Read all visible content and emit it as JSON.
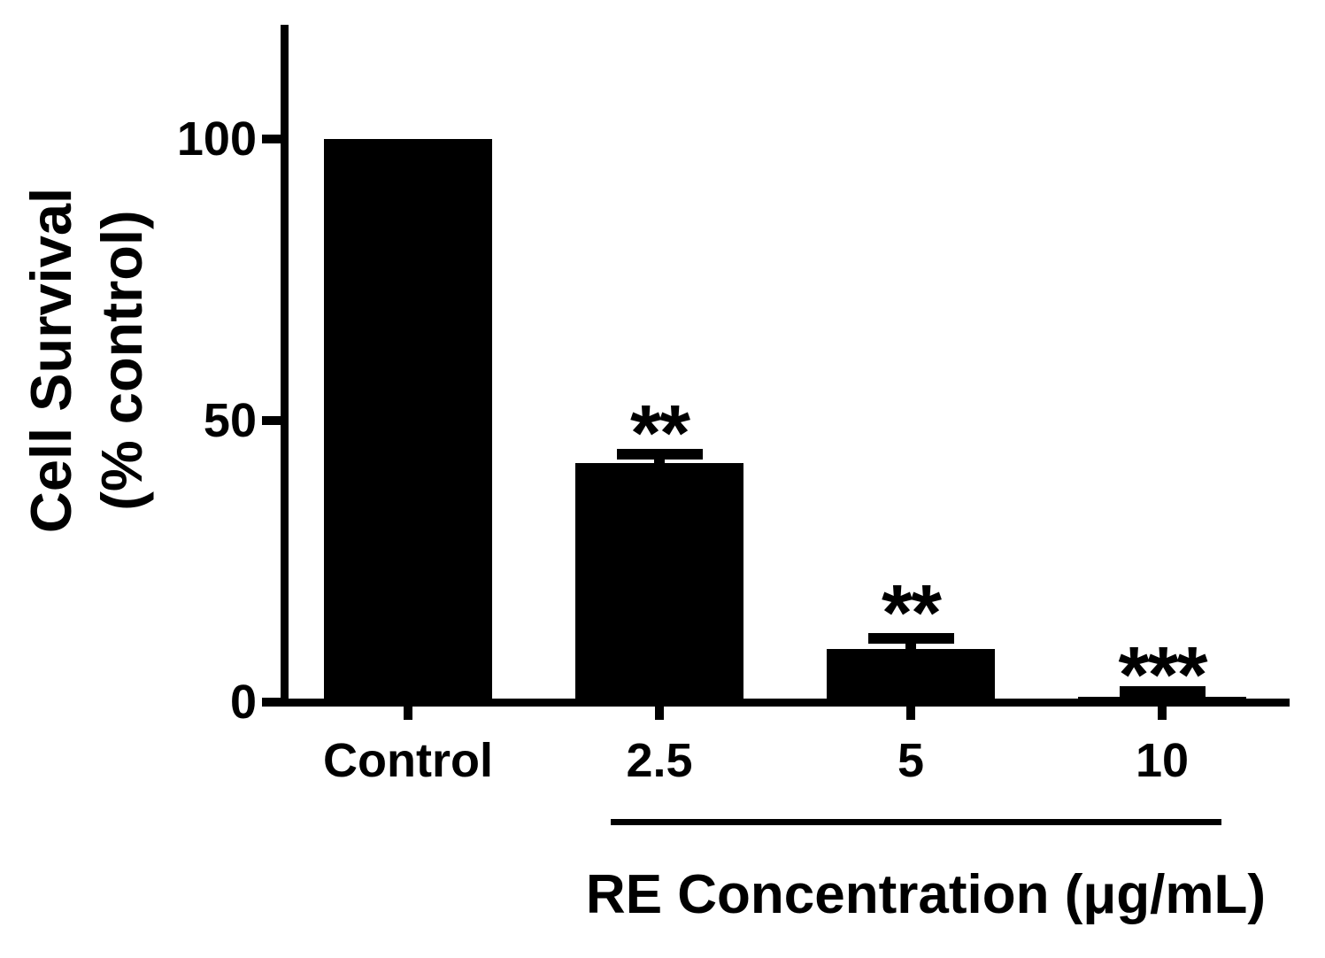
{
  "labels": {
    "y_axis_line1": "Cell Survival",
    "y_axis_line2": "(% control)",
    "x_group_label": "RE Concentration (μg/mL)"
  },
  "chart_data": {
    "type": "bar",
    "title": "",
    "categories": [
      "Control",
      "2.5",
      "5",
      "10"
    ],
    "values": [
      100,
      42.5,
      9.5,
      1
    ],
    "error_upper": [
      null,
      2.5,
      2.8,
      1.8
    ],
    "significance": [
      null,
      "**",
      "**",
      "***"
    ],
    "ylabel": "Cell Survival (% control)",
    "xlabel": "RE Concentration (μg/mL)",
    "ylim": [
      0,
      120
    ],
    "yticks": [
      0,
      50,
      100
    ],
    "bar_color": "#000000",
    "background_color": "#ffffff",
    "grid": false,
    "error_bar_style": "upper caps only",
    "x_group_underline_span": [
      "2.5",
      "10"
    ],
    "legend": null
  }
}
